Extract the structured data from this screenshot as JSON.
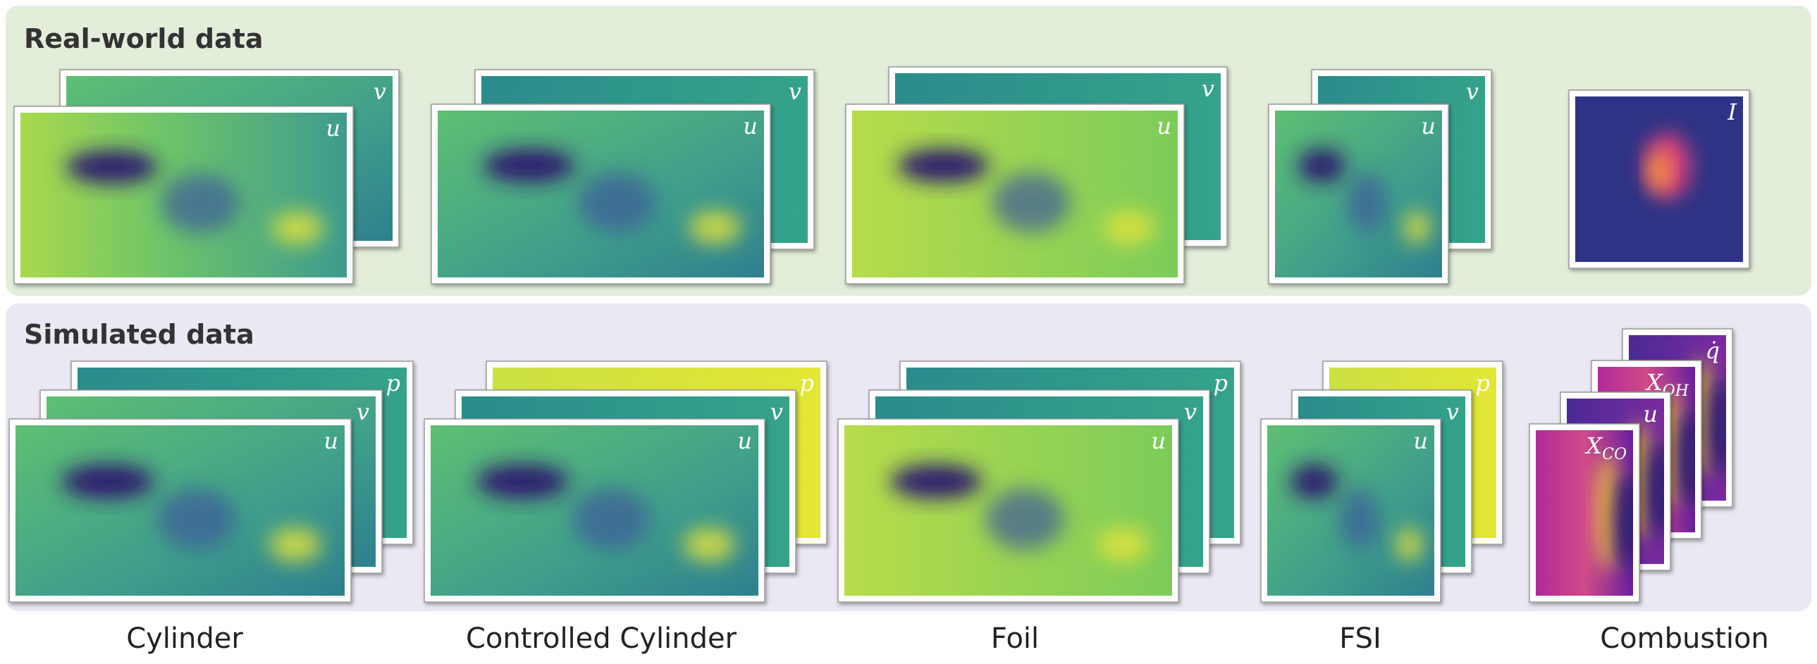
{
  "sections": [
    {
      "title": "Real-world data",
      "cases": [
        {
          "fields": [
            "v",
            "u"
          ]
        },
        {
          "fields": [
            "v",
            "u"
          ]
        },
        {
          "fields": [
            "v",
            "u"
          ]
        },
        {
          "fields": [
            "v",
            "u"
          ]
        },
        {
          "fields": [
            "I"
          ]
        }
      ]
    },
    {
      "title": "Simulated data",
      "cases": [
        {
          "fields": [
            "p",
            "v",
            "u"
          ]
        },
        {
          "fields": [
            "p",
            "v",
            "u"
          ]
        },
        {
          "fields": [
            "p",
            "v",
            "u"
          ]
        },
        {
          "fields": [
            "p",
            "v",
            "u"
          ]
        },
        {
          "fields": [
            "q̇",
            {
              "base": "X",
              "sub": "OH"
            },
            "u",
            {
              "base": "X",
              "sub": "CO"
            }
          ]
        }
      ]
    }
  ],
  "columns": [
    "Cylinder",
    "Controlled Cylinder",
    "Foil",
    "FSI",
    "Combustion"
  ]
}
